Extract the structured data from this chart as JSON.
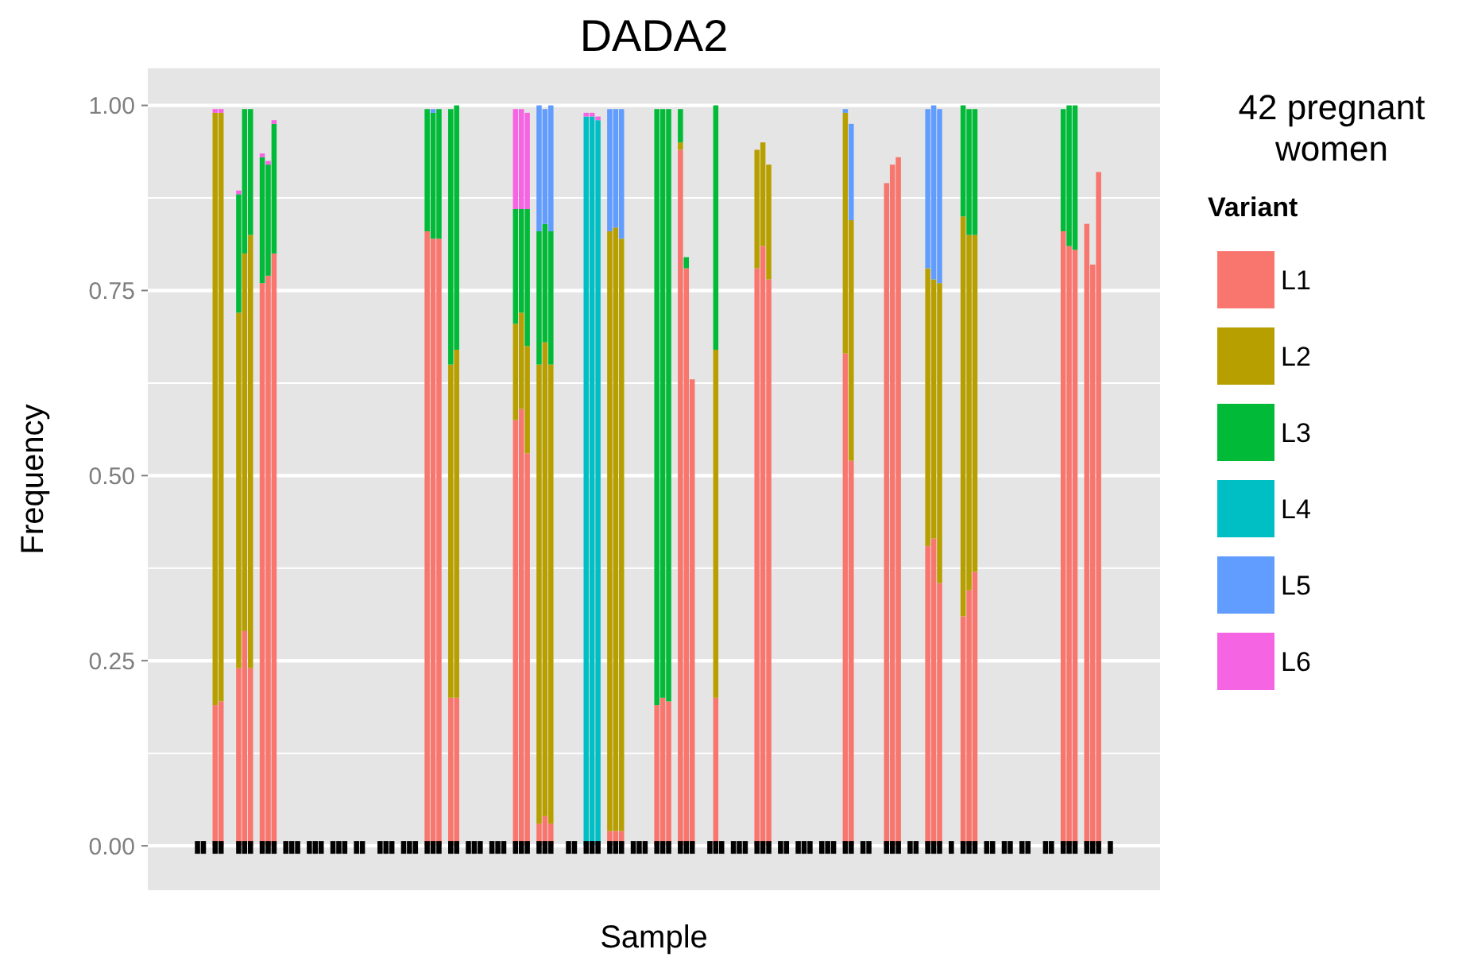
{
  "chart_data": {
    "type": "bar",
    "stacked": true,
    "title": "DADA2",
    "xlabel": "Sample",
    "ylabel": "Frequency",
    "legend_title": "Variant",
    "legend": "right",
    "grid": "y",
    "annotations": [
      "42 pregnant women"
    ],
    "ylim": [
      -0.06,
      1.05
    ],
    "yticks": [
      {
        "value": 0,
        "label": "0.00"
      },
      {
        "value": 0.125,
        "label": null
      },
      {
        "value": 0.25,
        "label": "0.25"
      },
      {
        "value": 0.375,
        "label": null
      },
      {
        "value": 0.5,
        "label": "0.50"
      },
      {
        "value": 0.625,
        "label": null
      },
      {
        "value": 0.75,
        "label": "0.75"
      },
      {
        "value": 0.875,
        "label": null
      },
      {
        "value": 1,
        "label": "1.00"
      }
    ],
    "categories": [
      null,
      null,
      null,
      null,
      null,
      null,
      null,
      null,
      null,
      null,
      null,
      null,
      null,
      null,
      null,
      null,
      null,
      null,
      null,
      null,
      null,
      null,
      null,
      null,
      null,
      null,
      null,
      null,
      null,
      null,
      null,
      null,
      null,
      null,
      null,
      null,
      null,
      null,
      null,
      null,
      null,
      null,
      null,
      null,
      null,
      null,
      null,
      null,
      null,
      null,
      null,
      null,
      null,
      null,
      null,
      null,
      null,
      null,
      null,
      null,
      null,
      null,
      null,
      null,
      null,
      null,
      null,
      null,
      null,
      null,
      null,
      null,
      null,
      null,
      null,
      null,
      null,
      null,
      null,
      null,
      null,
      null,
      null,
      null,
      null,
      null,
      null,
      null,
      null,
      null,
      null,
      null,
      null,
      null,
      null,
      null,
      null,
      null,
      null,
      null,
      null,
      null,
      null,
      null,
      null,
      null,
      null,
      null,
      null,
      null,
      null,
      null,
      null,
      null,
      null,
      null,
      null,
      null,
      null,
      null,
      null,
      null,
      null,
      null,
      null,
      null,
      null,
      null,
      null,
      null,
      null,
      null,
      null,
      null,
      null,
      null,
      null,
      null,
      null,
      null,
      null,
      null,
      null,
      null,
      null,
      null,
      null,
      null,
      null,
      null,
      null,
      null,
      null,
      null,
      null,
      null,
      null,
      null,
      null,
      null,
      null,
      null,
      null,
      null,
      null,
      null,
      null,
      null,
      null,
      null,
      null,
      null
    ],
    "series": [
      {
        "name": "L1",
        "color": "#f8766d",
        "values": [
          null,
          null,
          null,
          null,
          null,
          null,
          null,
          null,
          null,
          null,
          null,
          0.19,
          0.195,
          null,
          null,
          0.24,
          0.29,
          0.24,
          null,
          0.76,
          0.77,
          0.8,
          null,
          null,
          null,
          null,
          null,
          null,
          null,
          null,
          null,
          null,
          null,
          null,
          null,
          null,
          null,
          null,
          null,
          null,
          null,
          null,
          null,
          null,
          null,
          null,
          null,
          0.83,
          0.82,
          0.82,
          null,
          0.2,
          0.2,
          null,
          null,
          null,
          null,
          null,
          null,
          null,
          null,
          null,
          0.575,
          0.59,
          0.53,
          null,
          0.03,
          0.04,
          0.03,
          null,
          null,
          null,
          null,
          null,
          null,
          null,
          null,
          null,
          0.02,
          0.02,
          0.02,
          null,
          null,
          null,
          null,
          null,
          0.19,
          0.2,
          0.195,
          null,
          0.94,
          0.78,
          0.63,
          null,
          null,
          null,
          0.2,
          null,
          null,
          null,
          null,
          null,
          null,
          0.78,
          0.81,
          0.765,
          null,
          null,
          null,
          null,
          null,
          null,
          null,
          null,
          null,
          null,
          null,
          null,
          0.665,
          0.52,
          null,
          null,
          null,
          null,
          null,
          0.895,
          0.92,
          0.93,
          null,
          null,
          null,
          null,
          0.405,
          0.415,
          0.355,
          null,
          null,
          null,
          0.31,
          0.345,
          0.37,
          null,
          null,
          null,
          null,
          null,
          null,
          null,
          null,
          null,
          null,
          null,
          null,
          null,
          null,
          0.83,
          0.81,
          0.805,
          null,
          0.84,
          0.785,
          0.91,
          null,
          null,
          null,
          null,
          null,
          null,
          null,
          null,
          null,
          null
        ]
      },
      {
        "name": "L2",
        "color": "#b79f00",
        "values": [
          null,
          null,
          null,
          null,
          null,
          null,
          null,
          null,
          null,
          null,
          null,
          0.8,
          0.795,
          null,
          null,
          0.48,
          0.51,
          0.585,
          null,
          null,
          null,
          null,
          null,
          null,
          null,
          null,
          null,
          null,
          null,
          null,
          null,
          null,
          null,
          null,
          null,
          null,
          null,
          null,
          null,
          null,
          null,
          null,
          null,
          null,
          null,
          null,
          null,
          null,
          null,
          null,
          null,
          0.45,
          0.47,
          null,
          null,
          null,
          null,
          null,
          null,
          null,
          null,
          null,
          0.13,
          0.13,
          0.145,
          null,
          0.62,
          0.64,
          0.62,
          null,
          null,
          null,
          null,
          null,
          null,
          null,
          null,
          null,
          0.81,
          0.815,
          0.8,
          null,
          null,
          null,
          null,
          null,
          null,
          null,
          null,
          null,
          0.01,
          null,
          null,
          null,
          null,
          null,
          0.47,
          null,
          null,
          null,
          null,
          null,
          null,
          0.16,
          0.14,
          0.155,
          null,
          null,
          null,
          null,
          null,
          null,
          null,
          null,
          null,
          null,
          null,
          null,
          0.325,
          0.325,
          null,
          null,
          null,
          null,
          null,
          null,
          null,
          null,
          null,
          null,
          null,
          null,
          0.375,
          0.35,
          0.405,
          null,
          null,
          null,
          0.54,
          0.48,
          0.455,
          null,
          null,
          null,
          null,
          null,
          null,
          null,
          null,
          null,
          null,
          null,
          null,
          null,
          null,
          null,
          null,
          null,
          null,
          null,
          null,
          null,
          null,
          null,
          null,
          null,
          null,
          null,
          null,
          null,
          null,
          null
        ]
      },
      {
        "name": "L3",
        "color": "#00ba38",
        "values": [
          null,
          null,
          null,
          null,
          null,
          null,
          null,
          null,
          null,
          null,
          null,
          null,
          null,
          null,
          null,
          0.16,
          0.195,
          0.17,
          null,
          0.17,
          0.15,
          0.175,
          null,
          null,
          null,
          null,
          null,
          null,
          null,
          null,
          null,
          null,
          null,
          null,
          null,
          null,
          null,
          null,
          null,
          null,
          null,
          null,
          null,
          null,
          null,
          null,
          null,
          0.165,
          0.17,
          0.175,
          null,
          0.345,
          0.33,
          null,
          null,
          null,
          null,
          null,
          null,
          null,
          null,
          null,
          0.155,
          0.14,
          0.185,
          null,
          0.18,
          0.16,
          0.18,
          null,
          null,
          null,
          null,
          null,
          null,
          null,
          null,
          null,
          null,
          null,
          null,
          null,
          null,
          null,
          null,
          null,
          0.805,
          0.795,
          0.8,
          null,
          0.045,
          0.015,
          null,
          null,
          null,
          null,
          0.33,
          null,
          null,
          null,
          null,
          null,
          null,
          null,
          null,
          null,
          null,
          null,
          null,
          null,
          null,
          null,
          null,
          null,
          null,
          null,
          null,
          null,
          null,
          null,
          null,
          null,
          null,
          null,
          null,
          null,
          null,
          null,
          null,
          null,
          null,
          null,
          null,
          null,
          null,
          null,
          null,
          null,
          0.15,
          0.17,
          0.17,
          null,
          null,
          null,
          null,
          null,
          null,
          null,
          null,
          null,
          null,
          null,
          null,
          null,
          null,
          0.165,
          0.19,
          0.195,
          null,
          null,
          null,
          null,
          null,
          null,
          null,
          null,
          null,
          null,
          null,
          null,
          null,
          null
        ]
      },
      {
        "name": "L4",
        "color": "#00bfc4",
        "values": [
          null,
          null,
          null,
          null,
          null,
          null,
          null,
          null,
          null,
          null,
          null,
          null,
          null,
          null,
          null,
          null,
          null,
          null,
          null,
          null,
          null,
          null,
          null,
          null,
          null,
          null,
          null,
          null,
          null,
          null,
          null,
          null,
          null,
          null,
          null,
          null,
          null,
          null,
          null,
          null,
          null,
          null,
          null,
          null,
          null,
          null,
          null,
          null,
          null,
          null,
          null,
          null,
          null,
          null,
          null,
          null,
          null,
          null,
          null,
          null,
          null,
          null,
          null,
          null,
          null,
          null,
          null,
          null,
          null,
          null,
          null,
          null,
          null,
          null,
          0.985,
          0.985,
          0.98,
          null,
          null,
          null,
          null,
          null,
          null,
          null,
          null,
          null,
          null,
          null,
          null,
          null,
          null,
          null,
          null,
          null,
          null,
          null,
          null,
          null,
          null,
          null,
          null,
          null,
          null,
          null,
          null,
          null,
          null,
          null,
          null,
          null,
          null,
          null,
          null,
          null,
          null,
          null,
          null,
          null,
          null,
          null,
          null,
          null,
          null,
          null,
          null,
          null,
          null,
          null,
          null,
          null,
          null,
          null,
          null,
          null,
          null,
          null,
          null,
          null,
          null,
          null,
          null,
          null,
          null,
          null,
          null,
          null,
          null,
          null,
          null,
          null,
          null,
          null,
          null,
          null,
          null,
          null,
          null,
          null,
          null,
          null,
          null,
          null,
          null,
          null,
          null,
          null,
          null,
          null,
          null,
          null,
          null,
          null
        ]
      },
      {
        "name": "L5",
        "color": "#619cff",
        "values": [
          null,
          null,
          null,
          null,
          null,
          null,
          null,
          null,
          null,
          null,
          null,
          null,
          null,
          null,
          null,
          null,
          null,
          null,
          null,
          null,
          null,
          null,
          null,
          null,
          null,
          null,
          null,
          null,
          null,
          null,
          null,
          null,
          null,
          null,
          null,
          null,
          null,
          null,
          null,
          null,
          null,
          null,
          null,
          null,
          null,
          null,
          null,
          null,
          0.005,
          null,
          null,
          null,
          null,
          null,
          null,
          null,
          null,
          null,
          null,
          null,
          null,
          null,
          null,
          null,
          null,
          null,
          0.17,
          0.155,
          0.17,
          null,
          null,
          null,
          null,
          null,
          null,
          null,
          null,
          null,
          0.165,
          0.16,
          0.175,
          null,
          null,
          null,
          null,
          null,
          null,
          null,
          null,
          null,
          null,
          null,
          null,
          null,
          null,
          null,
          null,
          null,
          null,
          null,
          null,
          null,
          null,
          null,
          null,
          null,
          null,
          null,
          null,
          null,
          null,
          null,
          null,
          null,
          null,
          null,
          null,
          null,
          0.005,
          0.13,
          null,
          null,
          null,
          null,
          null,
          null,
          null,
          null,
          null,
          null,
          null,
          null,
          0.215,
          0.235,
          0.235,
          null,
          null,
          null,
          null,
          null,
          null,
          null,
          null,
          null,
          null,
          null,
          null,
          null,
          null,
          null,
          null,
          null,
          null,
          null,
          null,
          null,
          null,
          null,
          null,
          null,
          null,
          null,
          null,
          null,
          null,
          null,
          null,
          null,
          null,
          null,
          null,
          null
        ]
      },
      {
        "name": "L6",
        "color": "#f564e3",
        "values": [
          null,
          null,
          null,
          null,
          null,
          null,
          null,
          null,
          null,
          null,
          null,
          0.005,
          0.005,
          null,
          null,
          0.005,
          null,
          null,
          null,
          0.005,
          0.005,
          0.005,
          null,
          null,
          null,
          null,
          null,
          null,
          null,
          null,
          null,
          null,
          null,
          null,
          null,
          null,
          null,
          null,
          null,
          null,
          null,
          null,
          null,
          null,
          null,
          null,
          null,
          null,
          null,
          null,
          null,
          null,
          null,
          null,
          null,
          null,
          null,
          null,
          null,
          null,
          null,
          null,
          0.135,
          0.135,
          0.13,
          null,
          null,
          null,
          null,
          null,
          null,
          null,
          null,
          null,
          0.005,
          0.005,
          0.005,
          null,
          null,
          null,
          null,
          null,
          null,
          null,
          null,
          null,
          null,
          null,
          null,
          null,
          null,
          null,
          null,
          null,
          null,
          null,
          null,
          null,
          null,
          null,
          null,
          null,
          null,
          null,
          null,
          null,
          null,
          null,
          null,
          null,
          null,
          null,
          null,
          null,
          null,
          null,
          null,
          null,
          null,
          null,
          null,
          null,
          null,
          null,
          null,
          null,
          null,
          null,
          null,
          null,
          null,
          null,
          null,
          null,
          null,
          null,
          null,
          null,
          null,
          null,
          null,
          null,
          null,
          null,
          null,
          null,
          null,
          null,
          null,
          null,
          null,
          null,
          null,
          null,
          null,
          null,
          null,
          null,
          null,
          null,
          null,
          null,
          null,
          null,
          null,
          null,
          null,
          null,
          null,
          null,
          null,
          null
        ]
      },
      {
        "type": "scatter",
        "marker": "square",
        "color": "#000000",
        "values": [
          null,
          null,
          null,
          null,
          null,
          null,
          null,
          null,
          0,
          0,
          null,
          0,
          0,
          null,
          null,
          0,
          0,
          0,
          null,
          0,
          0,
          0,
          null,
          0,
          0,
          0,
          null,
          0,
          0,
          0,
          null,
          0,
          0,
          0,
          null,
          0,
          0,
          null,
          null,
          0,
          0,
          0,
          null,
          0,
          0,
          0,
          null,
          0,
          0,
          0,
          null,
          0,
          0,
          null,
          0,
          0,
          0,
          null,
          0,
          0,
          0,
          null,
          0,
          0,
          0,
          null,
          0,
          0,
          0,
          null,
          null,
          0,
          0,
          null,
          0,
          0,
          0,
          null,
          0,
          0,
          0,
          null,
          0,
          0,
          0,
          null,
          0,
          0,
          0,
          null,
          0,
          0,
          0,
          null,
          null,
          0,
          0,
          0,
          null,
          0,
          0,
          0,
          null,
          0,
          0,
          0,
          null,
          0,
          0,
          null,
          0,
          0,
          0,
          null,
          0,
          0,
          0,
          null,
          0,
          0,
          null,
          0,
          0,
          null,
          null,
          0,
          0,
          0,
          null,
          0,
          0,
          null,
          0,
          0,
          0,
          null,
          0,
          null,
          0,
          0,
          0,
          null,
          0,
          0,
          null,
          0,
          0,
          null,
          0,
          0,
          null,
          null,
          0,
          0,
          null,
          0,
          0,
          0,
          null,
          0,
          0,
          0,
          null,
          0,
          null,
          null,
          null,
          null,
          null,
          null,
          null,
          null
        ]
      }
    ]
  }
}
